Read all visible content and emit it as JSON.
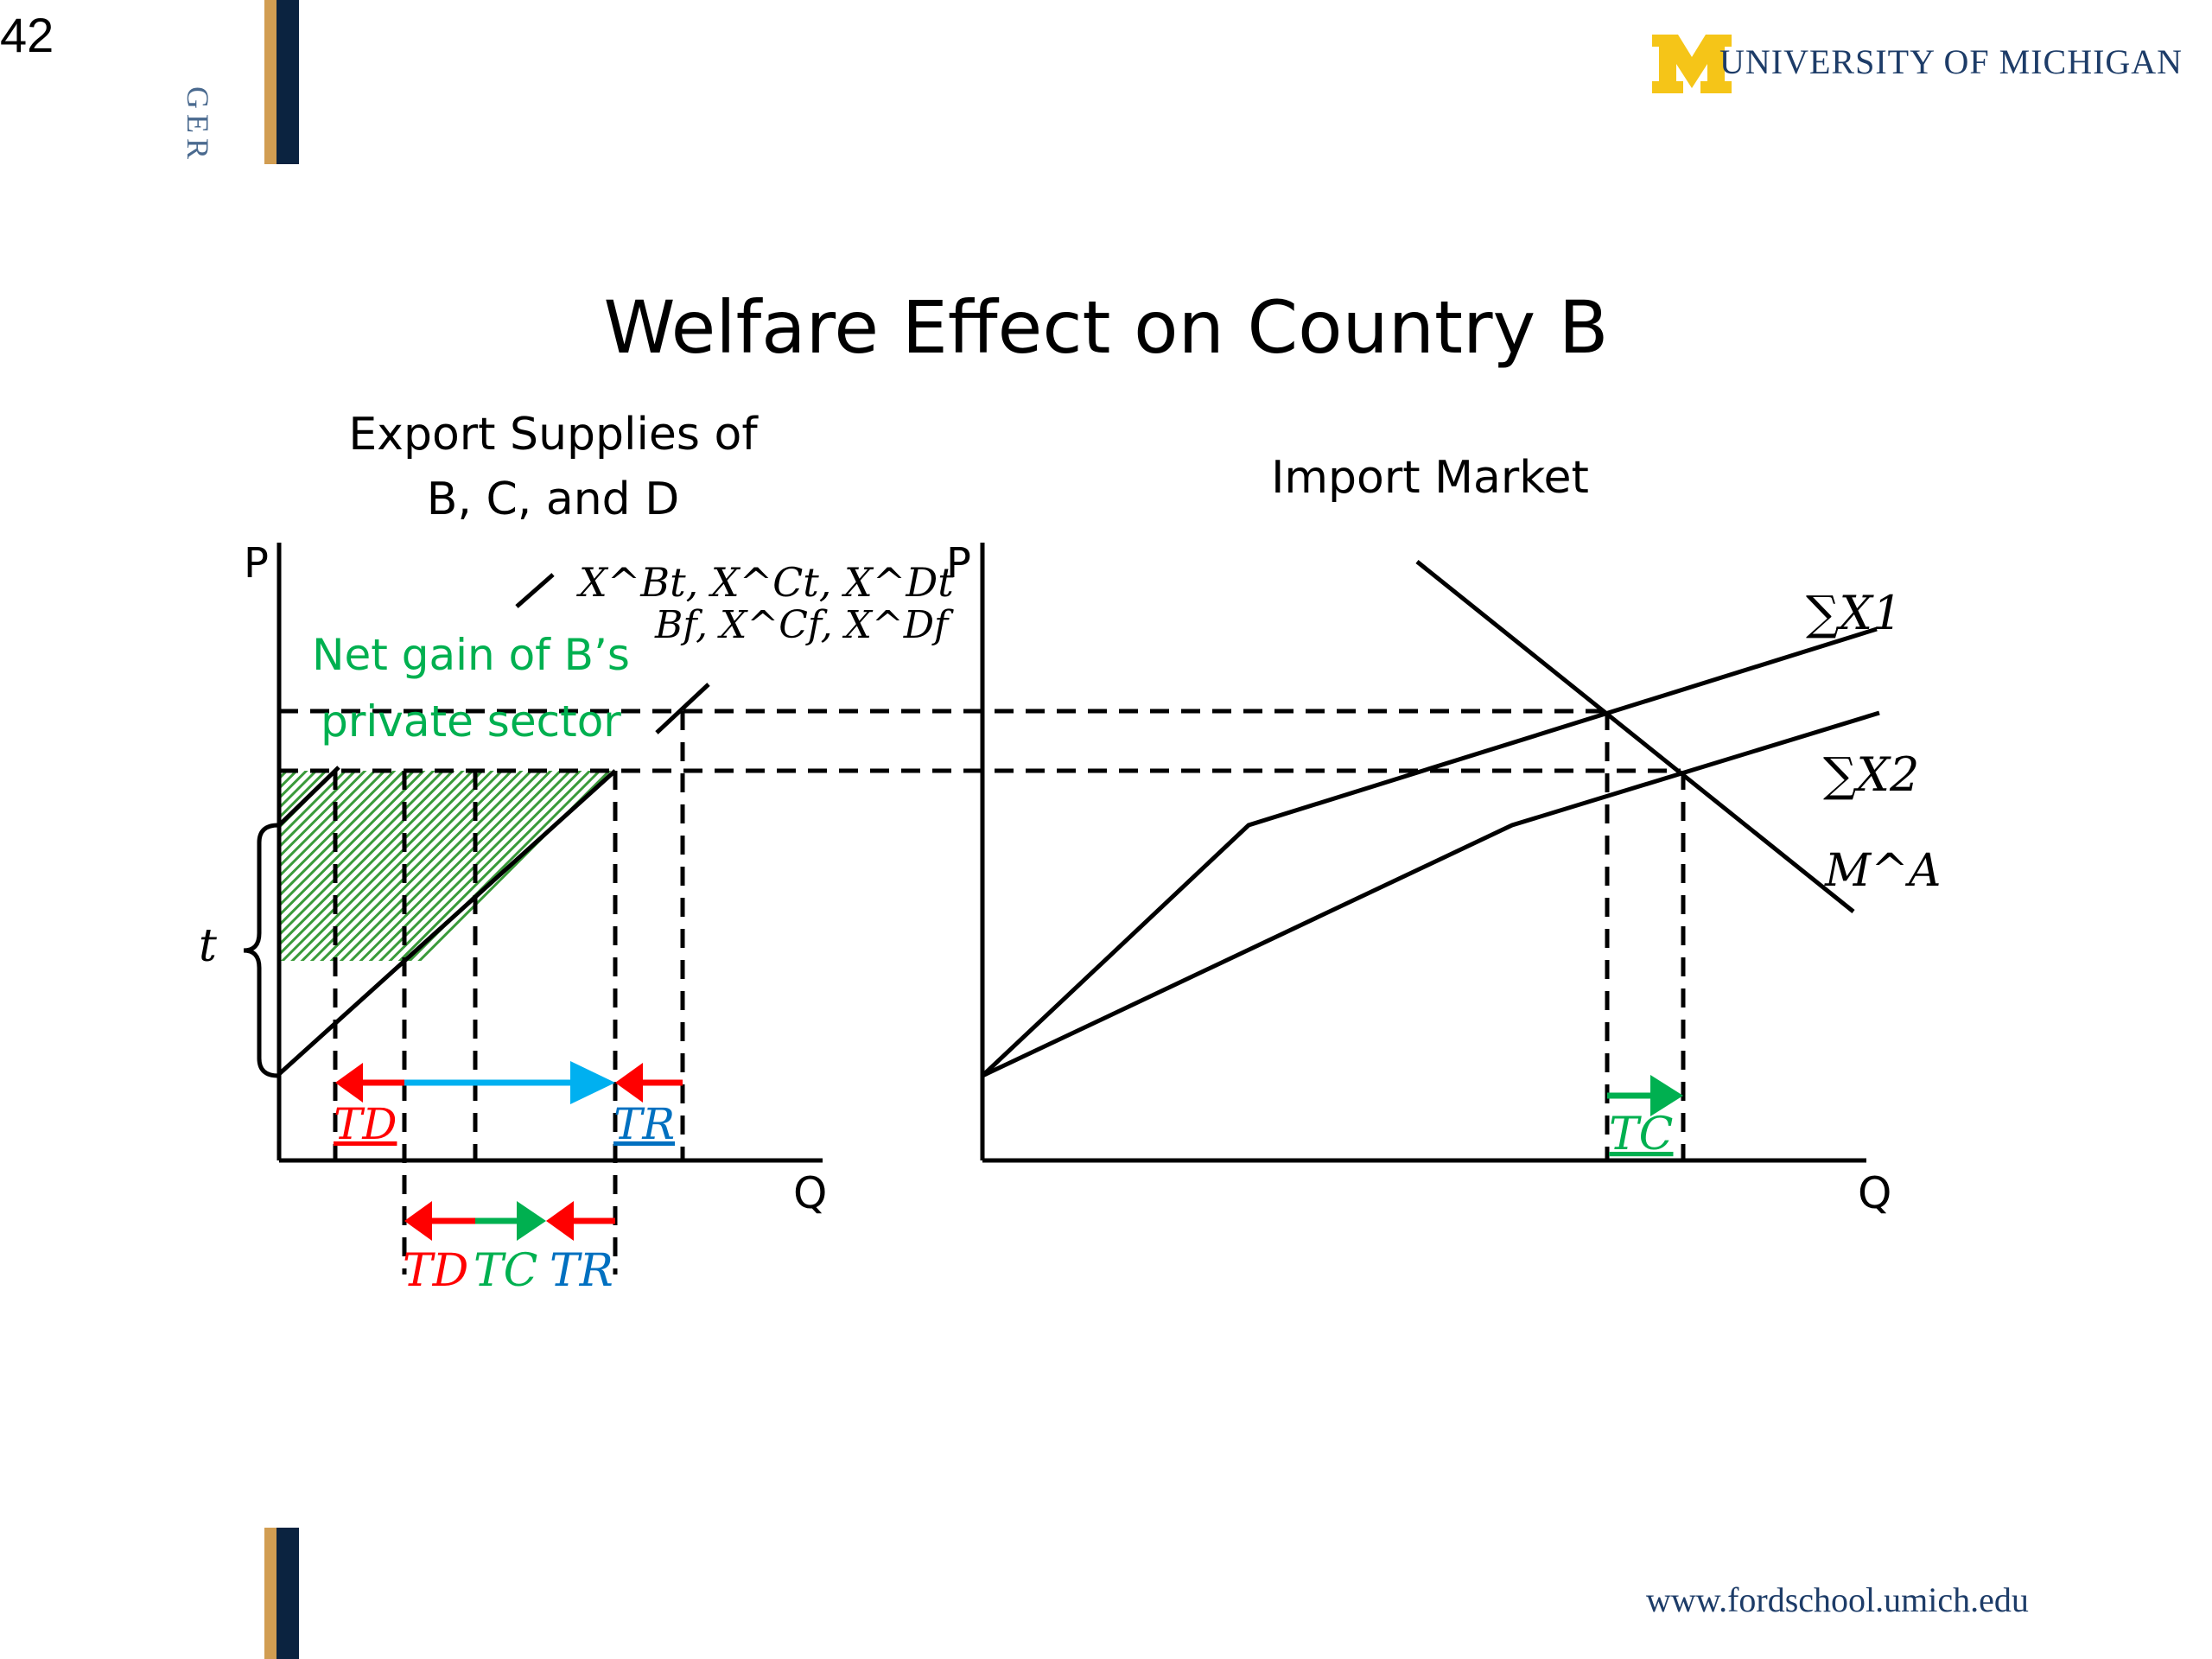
{
  "slide": {
    "number": "42"
  },
  "header": {
    "side_label": "GER",
    "logo_initial": "M",
    "logo_text": "UNIVERSITY OF MICHIGAN"
  },
  "title": "Welfare Effect on Country B",
  "left_panel": {
    "title_line1": "Export Supplies of",
    "title_line2": "B, C, and D",
    "axis_p": "P",
    "axis_q": "Q",
    "curve_label_top": "X^Bt, X^Ct, X^Dt",
    "curve_label_bottom": "Bf, X^Cf, X^Df",
    "net_gain_line1": "Net gain of B’s",
    "net_gain_line2": "private sector",
    "brace_label": "t",
    "arrow_labels_inner": [
      "TD",
      "TR"
    ],
    "arrow_labels_bottom": [
      "TD",
      "TC",
      "TR"
    ]
  },
  "right_panel": {
    "title": "Import Market",
    "axis_p": "P",
    "axis_q": "Q",
    "curve_sum_x1": "∑X1",
    "curve_sum_x2": "∑X2",
    "curve_m": "M^A",
    "arrow_label": "TC"
  },
  "colors": {
    "red": "#ff0000",
    "blue": "#00b0f0",
    "blue_text": "#0070c0",
    "green": "#00b050",
    "hatch_green": "#3a9a3a",
    "navy": "#0b2340",
    "gold": "#d19d52",
    "maize": "#f5c518"
  },
  "footer": {
    "url": "www.fordschool.umich.edu"
  }
}
